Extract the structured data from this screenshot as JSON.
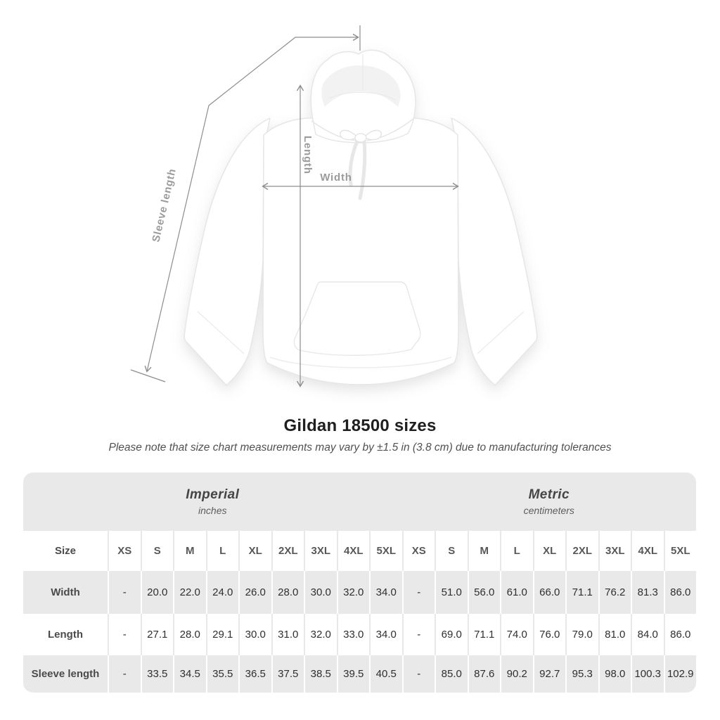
{
  "page": {
    "background": "#ffffff"
  },
  "diagram": {
    "labels": {
      "length": "Length",
      "width": "Width",
      "sleeve_length": "Sleeve length"
    },
    "line_color": "#8d8d8d",
    "label_color": "#9b9b9b"
  },
  "heading": {
    "title": "Gildan 18500 sizes",
    "subtitle": "Please note that size chart measurements may vary by ±1.5 in (3.8 cm) due to manufacturing tolerances"
  },
  "size_table": {
    "corner_header": "Size",
    "row_stripe_color": "#e9e9e9",
    "groups": [
      {
        "label": "Imperial",
        "unit": "inches"
      },
      {
        "label": "Metric",
        "unit": "centimeters"
      }
    ],
    "sizes": [
      "XS",
      "S",
      "M",
      "L",
      "XL",
      "2XL",
      "3XL",
      "4XL",
      "5XL"
    ],
    "rows": [
      {
        "label": "Width",
        "imperial": [
          "-",
          "20.0",
          "22.0",
          "24.0",
          "26.0",
          "28.0",
          "30.0",
          "32.0",
          "34.0"
        ],
        "metric": [
          "-",
          "51.0",
          "56.0",
          "61.0",
          "66.0",
          "71.1",
          "76.2",
          "81.3",
          "86.0"
        ]
      },
      {
        "label": "Length",
        "imperial": [
          "-",
          "27.1",
          "28.0",
          "29.1",
          "30.0",
          "31.0",
          "32.0",
          "33.0",
          "34.0"
        ],
        "metric": [
          "-",
          "69.0",
          "71.1",
          "74.0",
          "76.0",
          "79.0",
          "81.0",
          "84.0",
          "86.0"
        ]
      },
      {
        "label": "Sleeve length",
        "imperial": [
          "-",
          "33.5",
          "34.5",
          "35.5",
          "36.5",
          "37.5",
          "38.5",
          "39.5",
          "40.5"
        ],
        "metric": [
          "-",
          "85.0",
          "87.6",
          "90.2",
          "92.7",
          "95.3",
          "98.0",
          "100.3",
          "102.9"
        ]
      }
    ]
  },
  "chart_data": {
    "type": "table",
    "title": "Gildan 18500 sizes",
    "note": "Please note that size chart measurements may vary by ±1.5 in (3.8 cm) due to manufacturing tolerances",
    "column_groups": [
      {
        "label": "Imperial",
        "unit": "inches"
      },
      {
        "label": "Metric",
        "unit": "centimeters"
      }
    ],
    "sizes": [
      "XS",
      "S",
      "M",
      "L",
      "XL",
      "2XL",
      "3XL",
      "4XL",
      "5XL"
    ],
    "measurements": [
      {
        "name": "Width",
        "imperial_in": [
          null,
          20.0,
          22.0,
          24.0,
          26.0,
          28.0,
          30.0,
          32.0,
          34.0
        ],
        "metric_cm": [
          null,
          51.0,
          56.0,
          61.0,
          66.0,
          71.1,
          76.2,
          81.3,
          86.0
        ]
      },
      {
        "name": "Length",
        "imperial_in": [
          null,
          27.1,
          28.0,
          29.1,
          30.0,
          31.0,
          32.0,
          33.0,
          34.0
        ],
        "metric_cm": [
          null,
          69.0,
          71.1,
          74.0,
          76.0,
          79.0,
          81.0,
          84.0,
          86.0
        ]
      },
      {
        "name": "Sleeve length",
        "imperial_in": [
          null,
          33.5,
          34.5,
          35.5,
          36.5,
          37.5,
          38.5,
          39.5,
          40.5
        ],
        "metric_cm": [
          null,
          85.0,
          87.6,
          90.2,
          92.7,
          95.3,
          98.0,
          100.3,
          102.9
        ]
      }
    ],
    "diagram_annotations": [
      "Sleeve length",
      "Length",
      "Width"
    ]
  }
}
